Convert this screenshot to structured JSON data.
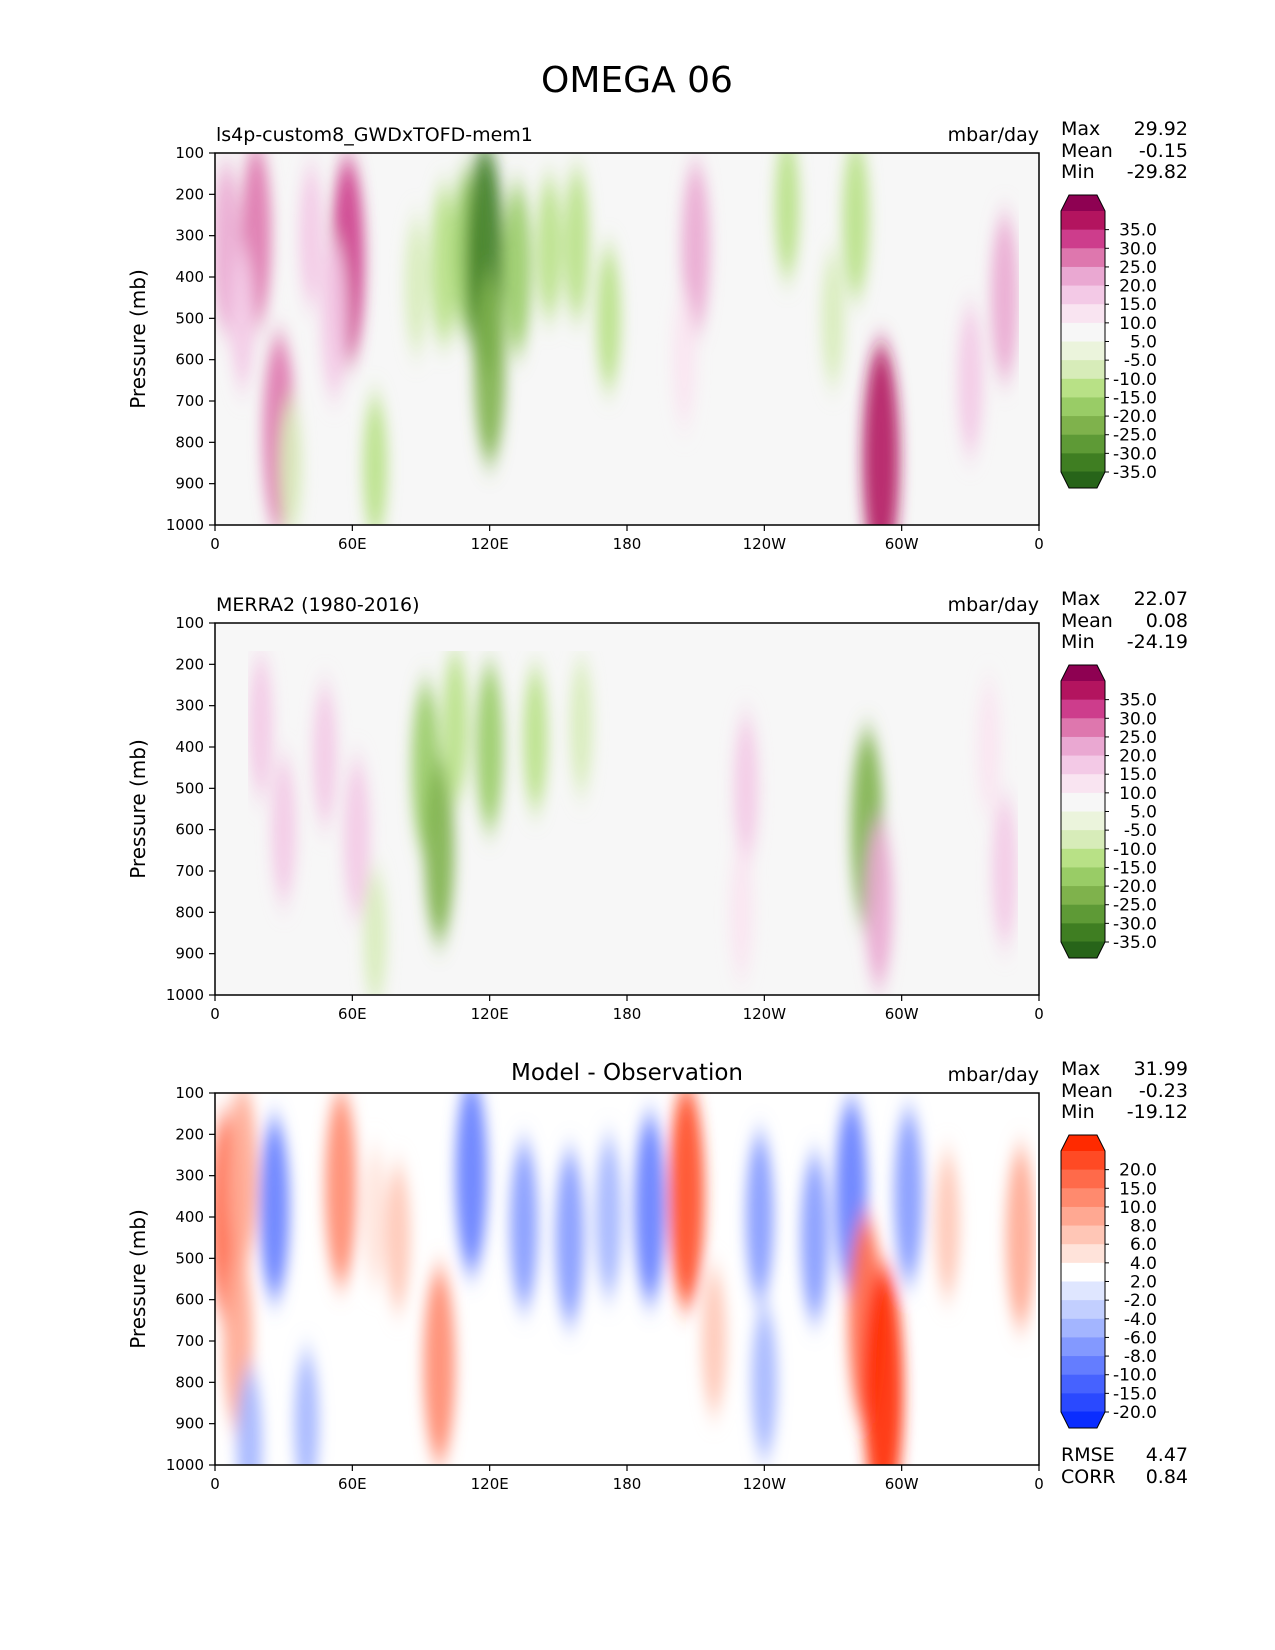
{
  "title": "OMEGA 06",
  "chart_data": [
    {
      "type": "heatmap",
      "panel": "model",
      "title": "ls4p-custom8_GWDxTOFD-mem1",
      "units": "mbar/day",
      "ylabel": "Pressure (mb)",
      "xlabel": "",
      "x_ticks": [
        "0",
        "60E",
        "120E",
        "180",
        "120W",
        "60W",
        "0"
      ],
      "y_ticks": [
        "100",
        "200",
        "300",
        "400",
        "500",
        "600",
        "700",
        "800",
        "900",
        "1000"
      ],
      "xlim": [
        0,
        360
      ],
      "ylim": [
        1000,
        100
      ],
      "stats": {
        "max_label": "Max",
        "max": "29.92",
        "mean_label": "Mean",
        "mean": "-0.15",
        "min_label": "Min",
        "min": "-29.82"
      },
      "colorbar": {
        "labels": [
          "35.0",
          "30.0",
          "25.0",
          "20.0",
          "15.0",
          "10.0",
          "5.0",
          "-5.0",
          "-10.0",
          "-15.0",
          "-20.0",
          "-25.0",
          "-30.0",
          "-35.0"
        ],
        "colors": [
          "#8e0152",
          "#b3145f",
          "#cd3d8c",
          "#de77ae",
          "#eaa8d2",
          "#f3c9e6",
          "#f9e4f1",
          "#f7f7f7",
          "#ebf4dc",
          "#d7ecb9",
          "#b8e186",
          "#99cc66",
          "#7fb24c",
          "#5e9a36",
          "#3f7e22",
          "#276419"
        ]
      },
      "anomalies": [
        {
          "lon": 5,
          "p": 330,
          "v": 15
        },
        {
          "lon": 18,
          "p": 300,
          "v": 18
        },
        {
          "lon": 12,
          "p": 500,
          "v": 8
        },
        {
          "lon": 28,
          "p": 780,
          "v": 22
        },
        {
          "lon": 58,
          "p": 360,
          "v": 24
        },
        {
          "lon": 52,
          "p": 500,
          "v": 12
        },
        {
          "lon": 42,
          "p": 300,
          "v": 8
        },
        {
          "lon": 88,
          "p": 420,
          "v": -6
        },
        {
          "lon": 100,
          "p": 370,
          "v": -12
        },
        {
          "lon": 110,
          "p": 340,
          "v": -14
        },
        {
          "lon": 118,
          "p": 360,
          "v": -30
        },
        {
          "lon": 120,
          "p": 620,
          "v": -20
        },
        {
          "lon": 132,
          "p": 380,
          "v": -15
        },
        {
          "lon": 146,
          "p": 330,
          "v": -8
        },
        {
          "lon": 158,
          "p": 320,
          "v": -10
        },
        {
          "lon": 172,
          "p": 500,
          "v": -8
        },
        {
          "lon": 70,
          "p": 860,
          "v": -8
        },
        {
          "lon": 33,
          "p": 860,
          "v": -6
        },
        {
          "lon": 210,
          "p": 330,
          "v": 15
        },
        {
          "lon": 205,
          "p": 600,
          "v": 6
        },
        {
          "lon": 250,
          "p": 230,
          "v": -8
        },
        {
          "lon": 280,
          "p": 260,
          "v": -12
        },
        {
          "lon": 291,
          "p": 840,
          "v": 30
        },
        {
          "lon": 345,
          "p": 450,
          "v": 14
        },
        {
          "lon": 330,
          "p": 650,
          "v": 10
        },
        {
          "lon": 270,
          "p": 500,
          "v": -6
        }
      ]
    },
    {
      "type": "heatmap",
      "panel": "observation",
      "title": "MERRA2 (1980-2016)",
      "units": "mbar/day",
      "ylabel": "Pressure (mb)",
      "xlabel": "",
      "x_ticks": [
        "0",
        "60E",
        "120E",
        "180",
        "120W",
        "60W",
        "0"
      ],
      "y_ticks": [
        "100",
        "200",
        "300",
        "400",
        "500",
        "600",
        "700",
        "800",
        "900",
        "1000"
      ],
      "xlim": [
        0,
        360
      ],
      "ylim": [
        1000,
        100
      ],
      "stats": {
        "max_label": "Max",
        "max": "22.07",
        "mean_label": "Mean",
        "mean": "0.08",
        "min_label": "Min",
        "min": "-24.19"
      },
      "colorbar": {
        "labels": [
          "35.0",
          "30.0",
          "25.0",
          "20.0",
          "15.0",
          "10.0",
          "5.0",
          "-5.0",
          "-10.0",
          "-15.0",
          "-20.0",
          "-25.0",
          "-30.0",
          "-35.0"
        ],
        "colors": [
          "#8e0152",
          "#b3145f",
          "#cd3d8c",
          "#de77ae",
          "#eaa8d2",
          "#f3c9e6",
          "#f9e4f1",
          "#f7f7f7",
          "#ebf4dc",
          "#d7ecb9",
          "#b8e186",
          "#99cc66",
          "#7fb24c",
          "#5e9a36",
          "#3f7e22",
          "#276419"
        ]
      },
      "anomalies": [
        {
          "lon": 20,
          "p": 350,
          "v": 8
        },
        {
          "lon": 30,
          "p": 600,
          "v": 9
        },
        {
          "lon": 48,
          "p": 420,
          "v": 8
        },
        {
          "lon": 62,
          "p": 620,
          "v": 12
        },
        {
          "lon": 92,
          "p": 450,
          "v": -15
        },
        {
          "lon": 98,
          "p": 650,
          "v": -18
        },
        {
          "lon": 105,
          "p": 350,
          "v": -10
        },
        {
          "lon": 120,
          "p": 400,
          "v": -14
        },
        {
          "lon": 140,
          "p": 380,
          "v": -8
        },
        {
          "lon": 160,
          "p": 350,
          "v": -6
        },
        {
          "lon": 232,
          "p": 500,
          "v": 9
        },
        {
          "lon": 230,
          "p": 800,
          "v": 6
        },
        {
          "lon": 285,
          "p": 600,
          "v": -22
        },
        {
          "lon": 290,
          "p": 780,
          "v": 14
        },
        {
          "lon": 345,
          "p": 700,
          "v": 10
        },
        {
          "lon": 338,
          "p": 400,
          "v": 6
        },
        {
          "lon": 70,
          "p": 860,
          "v": -6
        }
      ]
    },
    {
      "type": "heatmap",
      "panel": "difference",
      "title": "Model - Observation",
      "units": "mbar/day",
      "ylabel": "Pressure (mb)",
      "xlabel": "",
      "x_ticks": [
        "0",
        "60E",
        "120E",
        "180",
        "120W",
        "60W",
        "0"
      ],
      "y_ticks": [
        "100",
        "200",
        "300",
        "400",
        "500",
        "600",
        "700",
        "800",
        "900",
        "1000"
      ],
      "xlim": [
        0,
        360
      ],
      "ylim": [
        1000,
        100
      ],
      "stats": {
        "max_label": "Max",
        "max": "31.99",
        "mean_label": "Mean",
        "mean": "-0.23",
        "min_label": "Min",
        "min": "-19.12"
      },
      "extra_stats": {
        "rmse_label": "RMSE",
        "rmse": "4.47",
        "corr_label": "CORR",
        "corr": "0.84"
      },
      "colorbar": {
        "labels": [
          "20.0",
          "15.0",
          "10.0",
          "8.0",
          "6.0",
          "4.0",
          "2.0",
          "-2.0",
          "-4.0",
          "-6.0",
          "-8.0",
          "-10.0",
          "-15.0",
          "-20.0"
        ],
        "colors": [
          "#ff2a00",
          "#ff4a24",
          "#ff6a4a",
          "#ff8a6e",
          "#ffa892",
          "#ffc6b6",
          "#ffe3da",
          "#ffffff",
          "#dfe6ff",
          "#c2cfff",
          "#a3b5ff",
          "#8399ff",
          "#647dff",
          "#4662ff",
          "#2a49ff",
          "#0a2dff"
        ]
      },
      "anomalies": [
        {
          "lon": 5,
          "p": 400,
          "v": 14
        },
        {
          "lon": 12,
          "p": 300,
          "v": 10
        },
        {
          "lon": 10,
          "p": 700,
          "v": 10
        },
        {
          "lon": 26,
          "p": 380,
          "v": -10
        },
        {
          "lon": 55,
          "p": 330,
          "v": 12
        },
        {
          "lon": 70,
          "p": 400,
          "v": 4
        },
        {
          "lon": 80,
          "p": 450,
          "v": 5
        },
        {
          "lon": 98,
          "p": 760,
          "v": 12
        },
        {
          "lon": 112,
          "p": 300,
          "v": -12
        },
        {
          "lon": 135,
          "p": 420,
          "v": -8
        },
        {
          "lon": 155,
          "p": 450,
          "v": -9
        },
        {
          "lon": 172,
          "p": 400,
          "v": -7
        },
        {
          "lon": 190,
          "p": 380,
          "v": -11
        },
        {
          "lon": 206,
          "p": 350,
          "v": 16
        },
        {
          "lon": 218,
          "p": 700,
          "v": 5
        },
        {
          "lon": 238,
          "p": 400,
          "v": -8
        },
        {
          "lon": 240,
          "p": 800,
          "v": -6
        },
        {
          "lon": 262,
          "p": 450,
          "v": -8
        },
        {
          "lon": 278,
          "p": 350,
          "v": -12
        },
        {
          "lon": 284,
          "p": 650,
          "v": 14
        },
        {
          "lon": 292,
          "p": 820,
          "v": 22
        },
        {
          "lon": 303,
          "p": 350,
          "v": -9
        },
        {
          "lon": 320,
          "p": 420,
          "v": 5
        },
        {
          "lon": 352,
          "p": 450,
          "v": 10
        },
        {
          "lon": 40,
          "p": 900,
          "v": -5
        },
        {
          "lon": 15,
          "p": 950,
          "v": -6
        }
      ]
    }
  ]
}
